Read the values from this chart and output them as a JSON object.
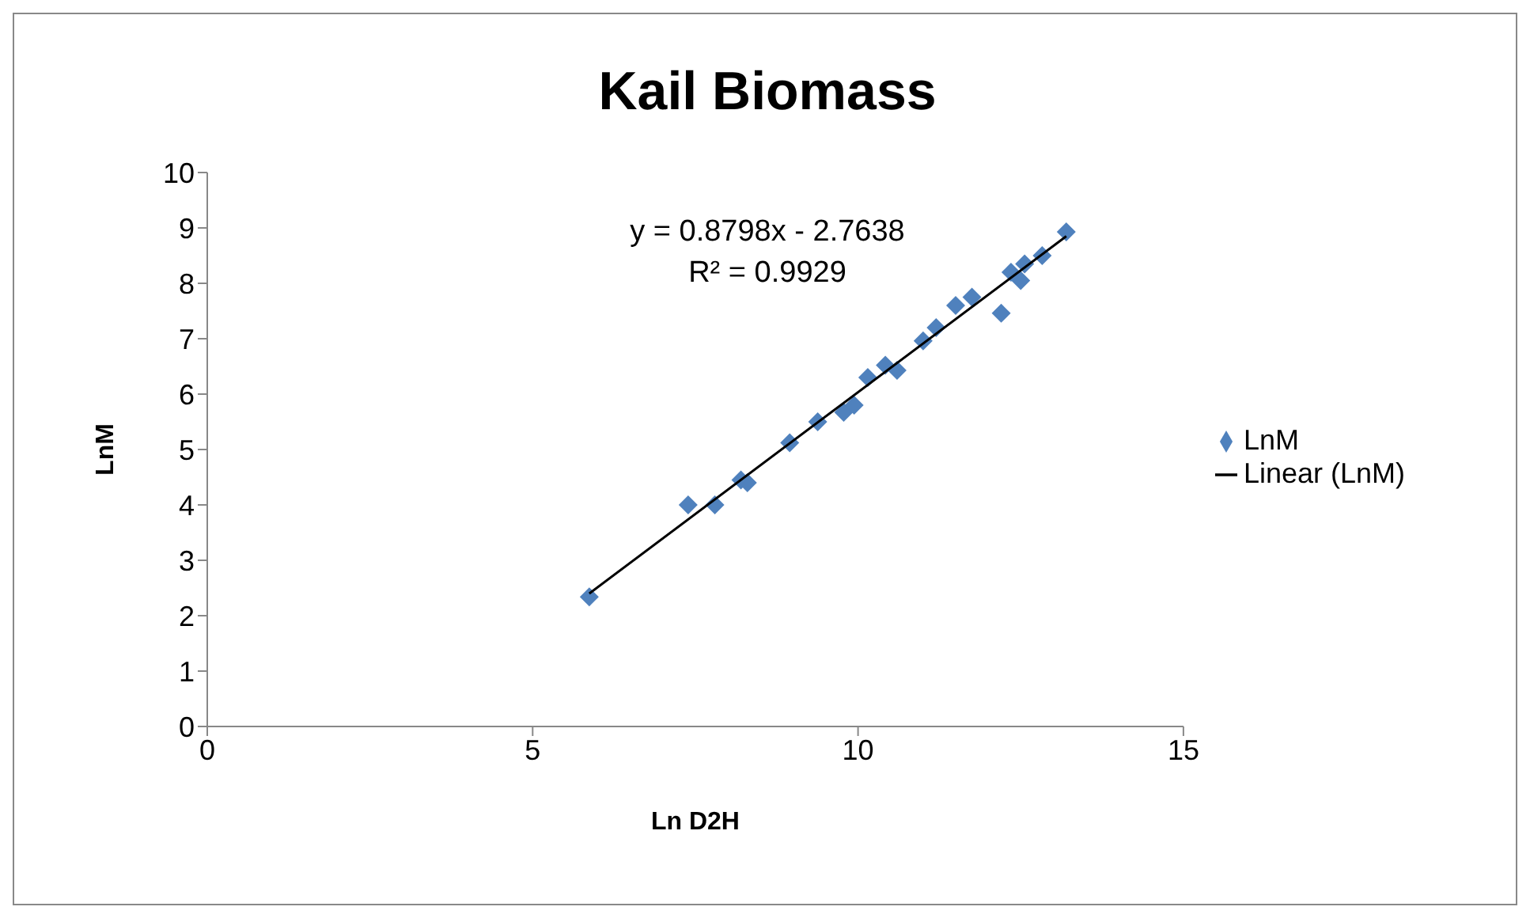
{
  "chart_data": {
    "type": "scatter",
    "title": "Kail Biomass",
    "xlabel": "Ln D2H",
    "ylabel": "LnM",
    "xlim": [
      0,
      15
    ],
    "xticks": [
      0,
      5,
      10,
      15
    ],
    "ylim": [
      0,
      10
    ],
    "yticks": [
      0,
      1,
      2,
      3,
      4,
      5,
      6,
      7,
      8,
      9,
      10
    ],
    "legend": "right",
    "annotations": [
      "y = 0.8798x - 2.7638",
      "R² = 0.9929"
    ],
    "series": [
      {
        "name": "LnM",
        "marker": "diamond",
        "color": "#4f81bd",
        "x": [
          5.87,
          7.39,
          7.8,
          8.2,
          8.3,
          8.95,
          9.38,
          9.78,
          9.94,
          10.15,
          10.42,
          10.6,
          11.0,
          11.2,
          11.5,
          11.75,
          12.2,
          12.35,
          12.5,
          12.56,
          12.83,
          13.2
        ],
        "values": [
          2.34,
          4.0,
          4.0,
          4.45,
          4.4,
          5.12,
          5.5,
          5.67,
          5.8,
          6.3,
          6.52,
          6.43,
          6.96,
          7.2,
          7.6,
          7.75,
          7.46,
          8.2,
          8.05,
          8.35,
          8.5,
          8.93
        ]
      },
      {
        "name": "Linear (LnM)",
        "type": "line",
        "marker": "none",
        "color": "#000000",
        "line_style": "solid",
        "x": [
          5.87,
          13.2
        ],
        "values": [
          2.4,
          8.85
        ]
      }
    ]
  }
}
